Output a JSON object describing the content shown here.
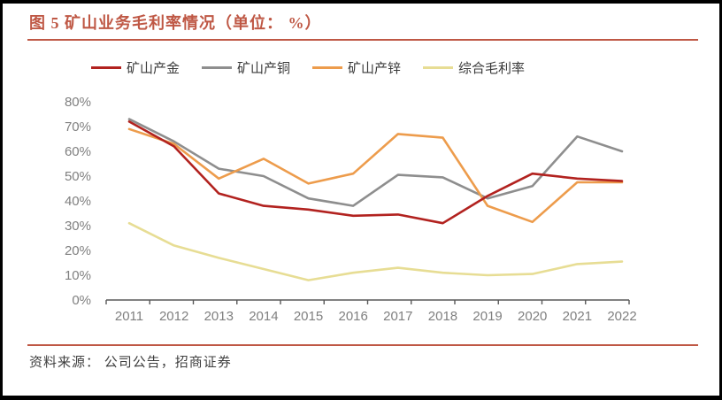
{
  "header": {
    "title": "图 5 矿山业务毛利率情况（单位： %）",
    "accent_color": "#BF5845"
  },
  "chart_data": {
    "type": "line",
    "title": "矿山业务毛利率情况",
    "unit": "%",
    "categories": [
      "2011",
      "2012",
      "2013",
      "2014",
      "2015",
      "2016",
      "2017",
      "2018",
      "2019",
      "2020",
      "2021",
      "2022"
    ],
    "series": [
      {
        "key": "gold",
        "name": "矿山产金",
        "color": "#B2221F",
        "values": [
          72,
          62,
          43,
          38,
          36.5,
          34,
          34.5,
          31,
          42,
          51,
          49,
          48
        ]
      },
      {
        "key": "copper",
        "name": "矿山产铜",
        "color": "#8E8E8E",
        "values": [
          73,
          64,
          53,
          50,
          41,
          38,
          50.5,
          49.5,
          41,
          46,
          66,
          60
        ]
      },
      {
        "key": "zinc",
        "name": "矿山产锌",
        "color": "#ED9C4C",
        "values": [
          69,
          63,
          49,
          57,
          47,
          51,
          67,
          65.5,
          38,
          31.5,
          47.5,
          47.5
        ]
      },
      {
        "key": "comprehensive",
        "name": "综合毛利率",
        "color": "#E7DD94",
        "values": [
          31,
          22,
          17,
          12.5,
          8,
          11,
          13,
          11,
          10,
          10.5,
          14.5,
          15.5
        ]
      }
    ],
    "draw_order": [
      1,
      2,
      3,
      0
    ],
    "ylim": [
      0,
      80
    ],
    "y_tick_step": 10,
    "y_tick_labels": [
      "0%",
      "10%",
      "20%",
      "30%",
      "40%",
      "50%",
      "60%",
      "70%",
      "80%"
    ],
    "xlabel": "",
    "ylabel": "",
    "grid": false,
    "legend_position": "top",
    "axis_color": "#595959",
    "tick_label_color": "#7F7F7F"
  },
  "footer": {
    "source_label": "资料来源： 公司公告，招商证券"
  }
}
